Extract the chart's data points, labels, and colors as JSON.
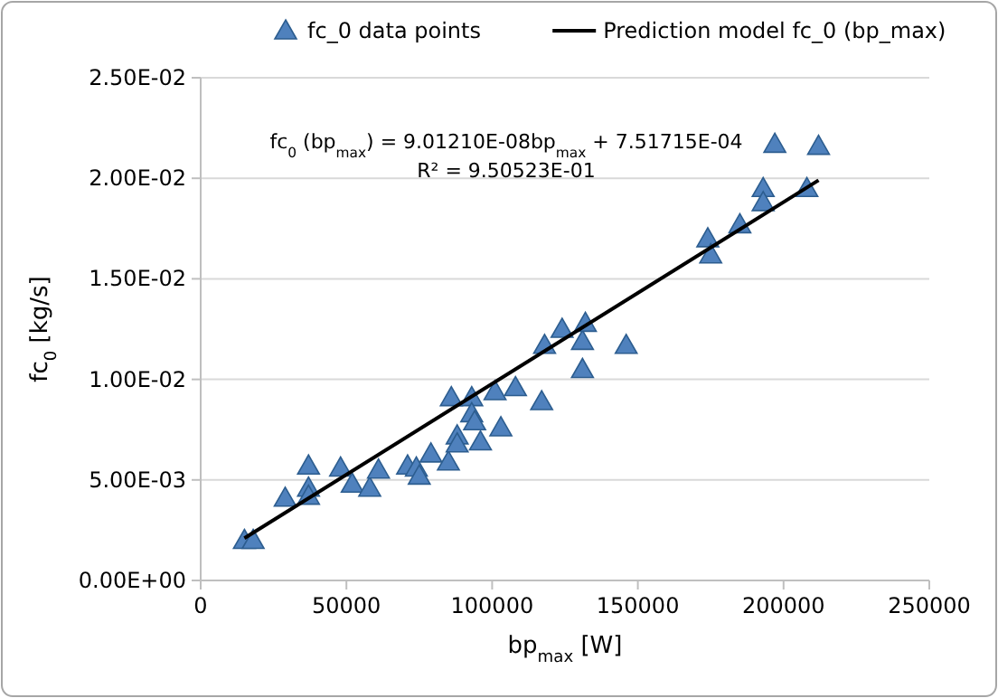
{
  "chart_data": {
    "type": "scatter",
    "xlabel": "bp$_{max}$ [W]",
    "ylabel": "fc$_{0}$ [kg/s]",
    "xlim": [
      0,
      250000
    ],
    "xticks": [
      0,
      50000,
      100000,
      150000,
      200000,
      250000
    ],
    "ylim": [
      0,
      0.025
    ],
    "yticks": [
      {
        "value": 0,
        "label": "0.00E+00"
      },
      {
        "value": 0.005,
        "label": "5.00E-03"
      },
      {
        "value": 0.01,
        "label": "1.00E-02"
      },
      {
        "value": 0.015,
        "label": "1.50E-02"
      },
      {
        "value": 0.02,
        "label": "2.00E-02"
      },
      {
        "value": 0.025,
        "label": "2.50E-02"
      }
    ],
    "grid": "y",
    "legend": "top",
    "annotations": [
      "fc$_{0}$ (bp$_{max}$) = 9.01210E-08bp$_{max}$ + 7.51715E-04",
      "R² = 9.50523E-01"
    ],
    "series": [
      {
        "name": "fc_0 data points",
        "marker": "triangle",
        "color": "#4f81bd",
        "x": [
          15000,
          18000,
          29000,
          37000,
          37000,
          37000,
          48000,
          52000,
          58000,
          61000,
          71000,
          74000,
          75000,
          79000,
          85000,
          86000,
          88000,
          88000,
          93000,
          93000,
          94000,
          96000,
          101000,
          103000,
          108000,
          117000,
          118000,
          124000,
          131000,
          131000,
          132000,
          146000,
          174000,
          175000,
          185000,
          193000,
          193000,
          197000,
          208000,
          212000
        ],
        "values": [
          0.002,
          0.002,
          0.0041,
          0.0057,
          0.0046,
          0.0042,
          0.0056,
          0.0048,
          0.0046,
          0.0055,
          0.0057,
          0.0056,
          0.0052,
          0.0063,
          0.0059,
          0.0091,
          0.0072,
          0.0068,
          0.0091,
          0.0083,
          0.0079,
          0.0069,
          0.0094,
          0.0076,
          0.0096,
          0.0089,
          0.0117,
          0.0125,
          0.0105,
          0.0119,
          0.0128,
          0.0117,
          0.017,
          0.0162,
          0.0177,
          0.0195,
          0.0188,
          0.0217,
          0.0195,
          0.0216
        ]
      },
      {
        "name": "Prediction model fc_0 (bp_max)",
        "type": "line",
        "color": "#000000",
        "x": [
          15000,
          212000
        ],
        "values": [
          0.0021,
          0.0199
        ]
      }
    ]
  }
}
